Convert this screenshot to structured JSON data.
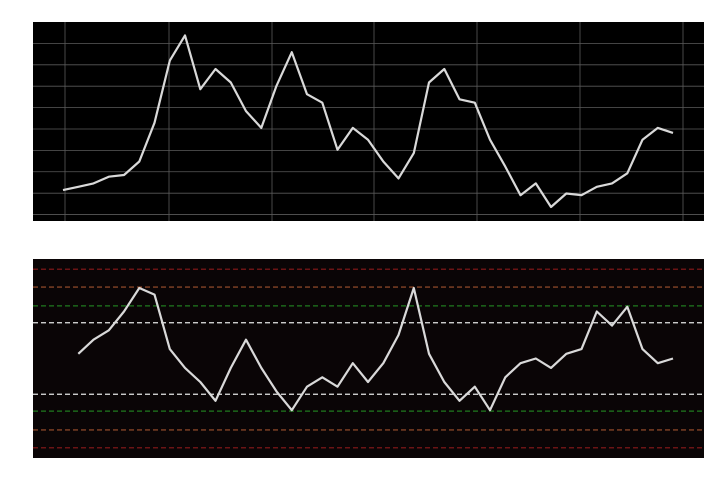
{
  "colors": {
    "figure_bg": "#ffffff",
    "price_panel_bg": "#000000",
    "oscillator_panel_bg": "#0a0506",
    "price_grid": "#5a5a5a",
    "line": "#d9d9d9",
    "level_outer": "#8b1a1a",
    "level_second": "#a0522d",
    "level_third": "#1f7a1f",
    "level_inner": "#e6e6e6"
  },
  "chart_data": [
    {
      "type": "line",
      "title": "",
      "xlabel": "",
      "ylabel": "",
      "grid": true,
      "ticks_labeled": false,
      "x": [
        0,
        15,
        30,
        45,
        60,
        75,
        90,
        105,
        120,
        135,
        150,
        165,
        180,
        195,
        210,
        225,
        240,
        255,
        270,
        285,
        300,
        315,
        330,
        345,
        360,
        375,
        390,
        405,
        420,
        435,
        450,
        465,
        480,
        495,
        510,
        525,
        540,
        555,
        570,
        585,
        600
      ],
      "series": [
        {
          "values": [
            0.08,
            0.1,
            0.12,
            0.16,
            0.17,
            0.25,
            0.48,
            0.85,
            1.0,
            0.68,
            0.8,
            0.72,
            0.55,
            0.45,
            0.7,
            0.9,
            0.65,
            0.6,
            0.32,
            0.45,
            0.38,
            0.25,
            0.15,
            0.3,
            0.72,
            0.8,
            0.62,
            0.6,
            0.38,
            0.22,
            0.05,
            0.12,
            -0.02,
            0.06,
            0.05,
            0.1,
            0.12,
            0.18,
            0.38,
            0.45,
            0.42
          ]
        }
      ]
    },
    {
      "type": "line",
      "title": "",
      "xlabel": "",
      "ylabel": "",
      "grid": false,
      "ticks_labeled": false,
      "x": [
        15,
        30,
        45,
        60,
        75,
        90,
        105,
        120,
        135,
        150,
        165,
        180,
        195,
        210,
        225,
        240,
        255,
        270,
        285,
        300,
        315,
        330,
        345,
        360,
        375,
        390,
        405,
        420,
        435,
        450,
        465,
        480,
        495,
        510,
        525,
        540,
        555,
        570,
        585,
        600
      ],
      "series": [
        {
          "values": [
            0.05,
            0.2,
            0.3,
            0.5,
            0.75,
            0.68,
            0.1,
            -0.1,
            -0.25,
            -0.45,
            -0.1,
            0.2,
            -0.1,
            -0.35,
            -0.55,
            -0.3,
            -0.2,
            -0.3,
            -0.05,
            -0.25,
            -0.05,
            0.25,
            0.75,
            0.05,
            -0.25,
            -0.45,
            -0.3,
            -0.55,
            -0.2,
            -0.05,
            0.0,
            -0.1,
            0.05,
            0.1,
            0.5,
            0.35,
            0.55,
            0.1,
            -0.05,
            0.0
          ]
        }
      ],
      "levels": [
        0.95,
        0.76,
        0.56,
        0.38,
        -0.38,
        -0.56,
        -0.76,
        -0.95
      ]
    }
  ]
}
